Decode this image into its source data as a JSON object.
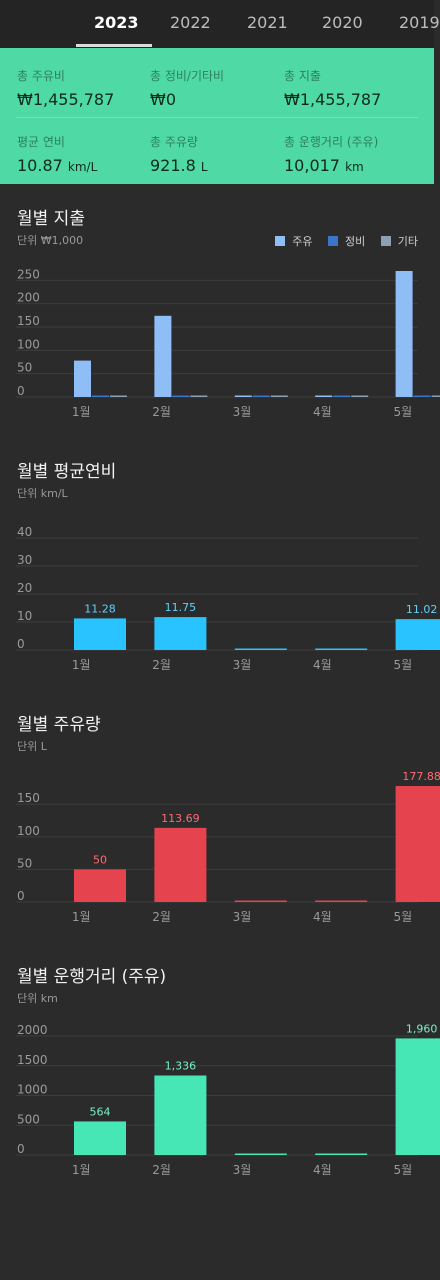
{
  "tabs": [
    "2023",
    "2022",
    "2021",
    "2020",
    "2019"
  ],
  "summary": {
    "fuel_cost": {
      "label": "총 주유비",
      "value": "₩1,455,787"
    },
    "maint_cost": {
      "label": "총 정비/기타비",
      "value": "₩0"
    },
    "total_cost": {
      "label": "총 지출",
      "value": "₩1,455,787"
    },
    "avg_eff": {
      "label": "평균 연비",
      "value": "10.87",
      "unit": "km/L"
    },
    "fuel_amount": {
      "label": "총 주유량",
      "value": "921.8",
      "unit": "L"
    },
    "distance": {
      "label": "총 운행거리 (주유)",
      "value": "10,017",
      "unit": "km"
    }
  },
  "colors": {
    "accent": "#4fd9a5",
    "fuel": "#8fbdf6",
    "maint": "#3b74c9",
    "other": "#8d9fb3",
    "efficiency": "#29c3ff",
    "amount": "#e5444f",
    "distance": "#47e6b5"
  },
  "chart_data": [
    {
      "type": "bar",
      "title": "월별 지출",
      "unit_label": "단위 ₩1,000",
      "categories": [
        "1월",
        "2월",
        "3월",
        "4월",
        "5월"
      ],
      "series": [
        {
          "name": "주유",
          "values": [
            78,
            174,
            0,
            0,
            270
          ]
        },
        {
          "name": "정비",
          "values": [
            0,
            0,
            0,
            0,
            0
          ]
        },
        {
          "name": "기타",
          "values": [
            0,
            0,
            0,
            0,
            0
          ]
        }
      ],
      "yticks": [
        0,
        50,
        100,
        150,
        200,
        250
      ],
      "ylim": [
        0,
        270
      ],
      "legend_position": "top-right"
    },
    {
      "type": "bar",
      "title": "월별 평균연비",
      "unit_label": "단위 km/L",
      "categories": [
        "1월",
        "2월",
        "3월",
        "4월",
        "5월"
      ],
      "values": [
        11.28,
        11.75,
        0,
        0,
        11.02
      ],
      "data_labels": [
        "11.28",
        "11.75",
        "",
        "",
        "11.02"
      ],
      "yticks": [
        0,
        10,
        20,
        30,
        40
      ],
      "ylim": [
        0,
        40
      ]
    },
    {
      "type": "bar",
      "title": "월별 주유량",
      "unit_label": "단위 L",
      "categories": [
        "1월",
        "2월",
        "3월",
        "4월",
        "5월"
      ],
      "values": [
        50,
        113.69,
        0,
        0,
        177.88
      ],
      "data_labels": [
        "50",
        "113.69",
        "",
        "",
        "177.88"
      ],
      "yticks": [
        0,
        50,
        100,
        150
      ],
      "ylim": [
        0,
        177.88
      ]
    },
    {
      "type": "bar",
      "title": "월별 운행거리 (주유)",
      "unit_label": "단위 km",
      "categories": [
        "1월",
        "2월",
        "3월",
        "4월",
        "5월"
      ],
      "values": [
        564,
        1336,
        0,
        0,
        1960
      ],
      "data_labels": [
        "564",
        "1,336",
        "",
        "",
        "1,960"
      ],
      "yticks": [
        0,
        500,
        1000,
        1500,
        2000
      ],
      "ylim": [
        0,
        2000
      ]
    }
  ]
}
